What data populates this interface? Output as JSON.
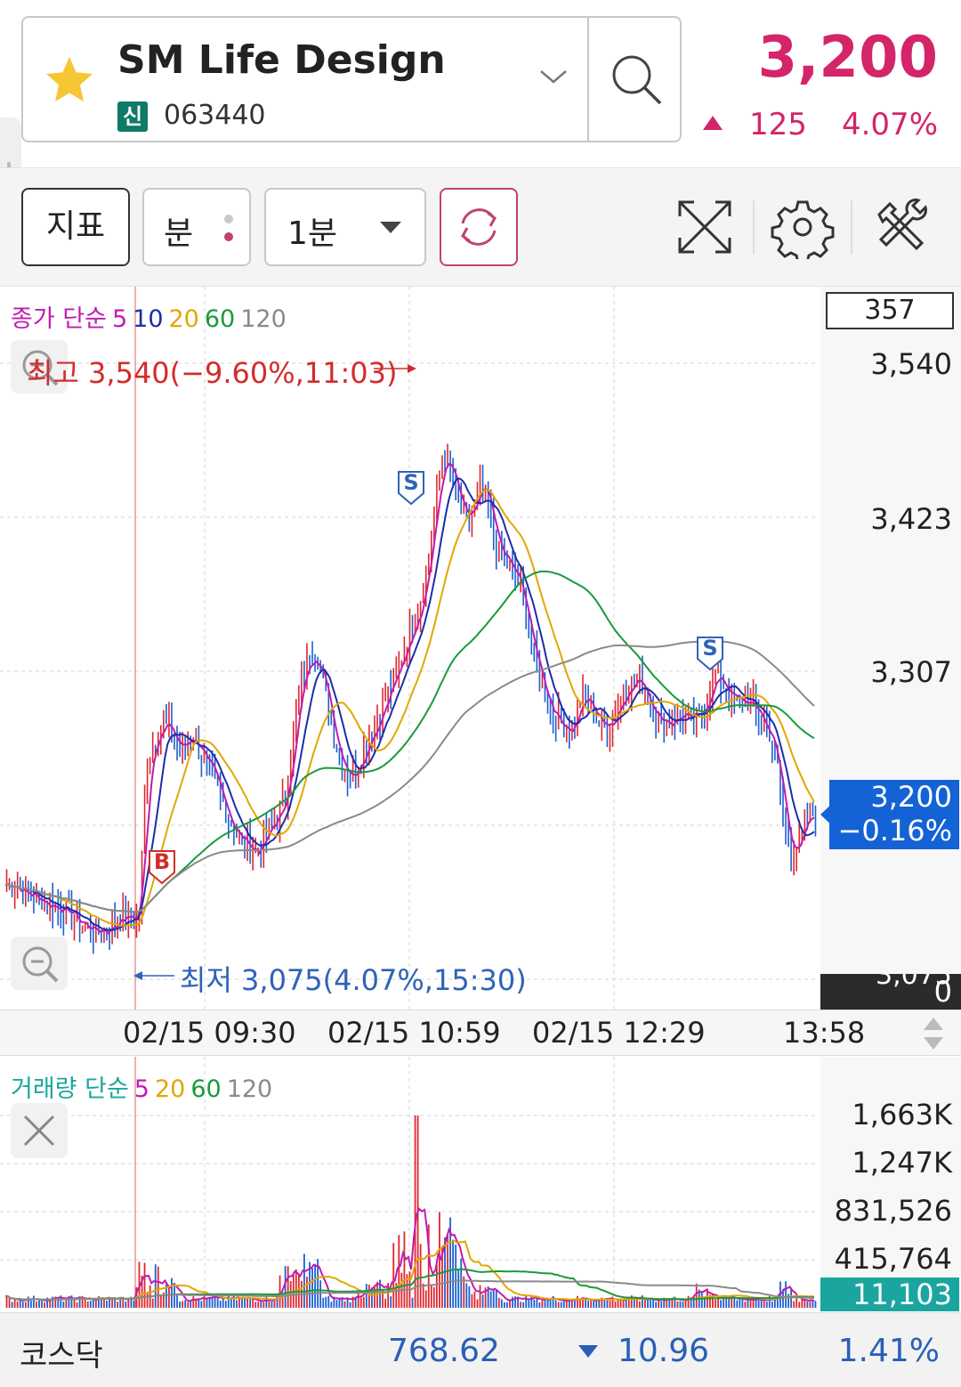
{
  "header": {
    "stock_name": "SM Life Design",
    "credit_badge": "신",
    "stock_code": "063440",
    "price": "3,200",
    "change": "125",
    "change_pct": "4.07%"
  },
  "toolbar": {
    "indicator_label": "지표",
    "unit_label": "분",
    "period_label": "1분"
  },
  "price_chart": {
    "ma_legend": {
      "prefix": "종가 단순",
      "periods": [
        "5",
        "10",
        "20",
        "60",
        "120"
      ],
      "colors": [
        "#c21bb2",
        "#1c2ea8",
        "#e0a800",
        "#1a9a3a",
        "#8a8a8a"
      ]
    },
    "scale_value": "357",
    "y_labels": [
      "3,540",
      "3,423",
      "3,307"
    ],
    "high_annotation": "최고 3,540(−9.60%,11:03)",
    "low_annotation": "최저 3,075(4.07%,15:30)",
    "current_price": "3,200",
    "current_change": "−0.16%",
    "bottom_tag": "0",
    "clipped_label": "3,075",
    "signals": [
      "B",
      "S",
      "S"
    ]
  },
  "time_axis": {
    "labels": [
      "02/15 09:30",
      "02/15 10:59",
      "02/15 12:29",
      "13:58"
    ]
  },
  "volume_chart": {
    "legend_prefix": "거래량 단순",
    "periods": [
      "5",
      "20",
      "60",
      "120"
    ],
    "colors": [
      "#c21bb2",
      "#e0a800",
      "#1a9a3a",
      "#8a8a8a"
    ],
    "y_labels": [
      "1,663K",
      "1,247K",
      "831,526",
      "415,764"
    ],
    "current_volume": "11,103"
  },
  "index_bar": {
    "name": "코스닥",
    "value": "768.62",
    "change": "10.96",
    "change_pct": "1.41%"
  },
  "chart_data": {
    "type": "candlestick",
    "title": "SM Life Design 1분",
    "y_range": [
      3075,
      3540
    ],
    "x_labels": [
      "02/15 09:30",
      "02/15 10:59",
      "02/15 12:29",
      "13:58"
    ],
    "close_series": [
      3145,
      3148,
      3140,
      3138,
      3135,
      3132,
      3130,
      3128,
      3125,
      3118,
      3115,
      3112,
      3110,
      3112,
      3118,
      3122,
      3120,
      3118,
      3240,
      3255,
      3270,
      3262,
      3248,
      3252,
      3260,
      3245,
      3232,
      3218,
      3205,
      3190,
      3180,
      3175,
      3170,
      3178,
      3190,
      3198,
      3215,
      3268,
      3300,
      3322,
      3318,
      3290,
      3260,
      3240,
      3228,
      3232,
      3252,
      3262,
      3275,
      3290,
      3302,
      3322,
      3340,
      3355,
      3385,
      3425,
      3470,
      3462,
      3435,
      3418,
      3428,
      3448,
      3432,
      3400,
      3392,
      3382,
      3372,
      3342,
      3312,
      3295,
      3278,
      3270,
      3262,
      3268,
      3288,
      3282,
      3270,
      3265,
      3272,
      3288,
      3296,
      3302,
      3294,
      3280,
      3270,
      3268,
      3272,
      3275,
      3268,
      3272,
      3285,
      3305,
      3298,
      3290,
      3282,
      3285,
      3280,
      3270,
      3262,
      3240,
      3190,
      3170,
      3178,
      3195,
      3200
    ],
    "ma_series": [
      {
        "name": "5"
      },
      {
        "name": "10"
      },
      {
        "name": "20"
      },
      {
        "name": "60"
      },
      {
        "name": "120"
      }
    ],
    "volume": {
      "y_ticks": [
        "415,764",
        "831,526",
        "1,247K",
        "1,663K"
      ],
      "peak": 1663000
    }
  }
}
